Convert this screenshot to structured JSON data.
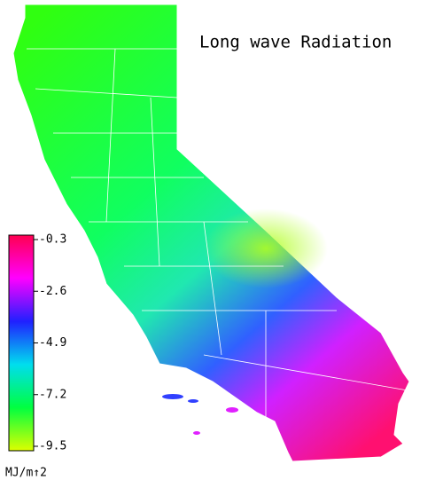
{
  "title": "Long wave Radiation",
  "colorbar": {
    "lim": [
      -9.5,
      -0.3
    ],
    "ticks": [
      -0.3,
      -2.6,
      -4.9,
      -7.2,
      -9.5
    ],
    "unit": "MJ/m↑2",
    "colors": [
      "#ddff00",
      "#00ff40",
      "#00ddee",
      "#2020ff",
      "#ff00ff",
      "#ff0050"
    ]
  }
}
